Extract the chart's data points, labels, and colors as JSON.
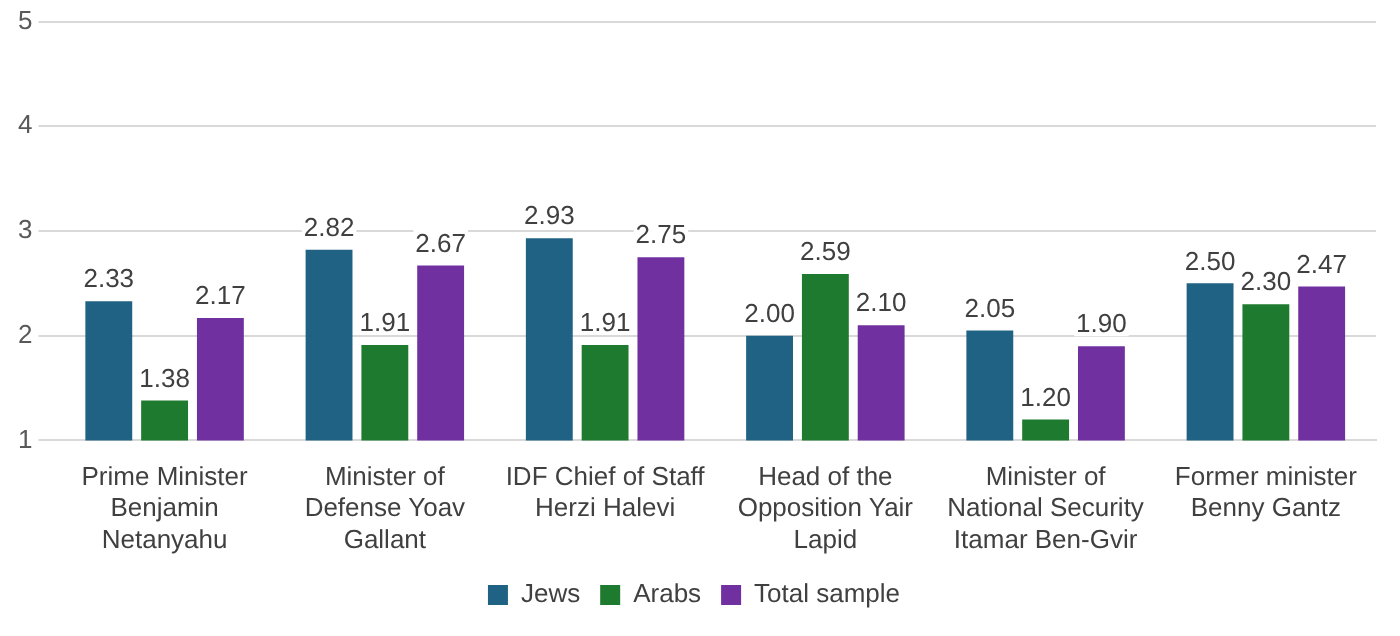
{
  "chart_data": {
    "type": "bar",
    "categories": [
      "Prime Minister\nBenjamin\nNetanyahu",
      "Minister of\nDefense Yoav\nGallant",
      "IDF Chief of Staff\nHerzi Halevi",
      "Head of the\nOpposition Yair\nLapid",
      "Minister of\nNational Security\nItamar Ben-Gvir",
      "Former minister\nBenny Gantz"
    ],
    "series": [
      {
        "name": "Jews",
        "color": "#1f6283",
        "values": [
          2.33,
          2.82,
          2.93,
          2.0,
          2.05,
          2.5
        ],
        "value_labels": [
          "2.33",
          "2.82",
          "2.93",
          "2.00",
          "2.05",
          "2.50"
        ]
      },
      {
        "name": "Arabs",
        "color": "#1e7a2e",
        "values": [
          1.38,
          1.91,
          1.91,
          2.59,
          1.2,
          2.3
        ],
        "value_labels": [
          "1.38",
          "1.91",
          "1.91",
          "2.59",
          "1.20",
          "2.30"
        ]
      },
      {
        "name": "Total sample",
        "color": "#7030a0",
        "values": [
          2.17,
          2.67,
          2.75,
          2.1,
          1.9,
          2.47
        ],
        "value_labels": [
          "2.17",
          "2.67",
          "2.75",
          "2.10",
          "1.90",
          "2.47"
        ]
      }
    ],
    "ylim": [
      1,
      5
    ],
    "yticks": [
      1,
      2,
      3,
      4,
      5
    ],
    "grid": "y",
    "legend": "bottom"
  }
}
